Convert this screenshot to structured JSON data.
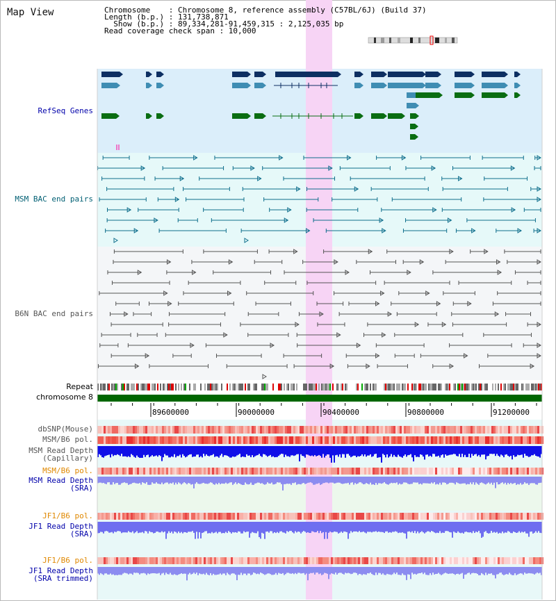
{
  "title": "Map View",
  "info": {
    "line1": "Chromosome    : Chromosome 8, reference assembly (C57BL/6J) (Build 37)",
    "line2": "Length (b.p.) : 131,738,871",
    "line3": "  Show (b.p.) : 89,334,281-91,459,315 : 2,125,035 bp",
    "line4": "Read coverage check span : 10,000"
  },
  "tracks": {
    "refseq": "RefSeq Genes",
    "msm_bac": "MSM BAC end pairs",
    "b6n_bac": "B6N BAC end pairs",
    "repeat": "Repeat",
    "chrom": "chromosome 8",
    "dbsnp": "dbSNP(Mouse)",
    "msm_b6_pol": "MSM/B6 pol.",
    "msm_depth_cap_1": "MSM Read Depth",
    "msm_depth_cap_2": "(Capillary)",
    "msm_b6_pol2": "MSM/B6 pol.",
    "msm_depth_sra_1": "MSM Read Depth",
    "msm_depth_sra_2": "(SRA)",
    "jf1_b6_pol": "JF1/B6 pol.",
    "jf1_depth_sra_1": "JF1 Read Depth",
    "jf1_depth_sra_2": "(SRA)",
    "jf1_b6_pol2": "JF1/B6 pol.",
    "jf1_depth_trim_1": "JF1 Read Depth",
    "jf1_depth_trim_2": "(SRA trimmed)"
  },
  "axis": {
    "ticks": [
      "89600000",
      "90000000",
      "90400000",
      "90800000",
      "91200000"
    ]
  },
  "colors": {
    "refseq_bg": "#dbeefa",
    "msm_bg": "#e6f9f9",
    "b6n_bg": "#f4f6f8",
    "highlight": "#f7d4f5",
    "gene_dark": "#0d2f62",
    "gene_mid": "#3f8db3",
    "gene_green": "#0a6d12",
    "msm_line": "#0f6e8c",
    "b6n_line": "#555555",
    "chrom_bar": "#006600",
    "label_blue": "#0000aa",
    "label_teal": "#005f73",
    "label_gray": "#555555",
    "label_orange": "#e08800"
  }
}
